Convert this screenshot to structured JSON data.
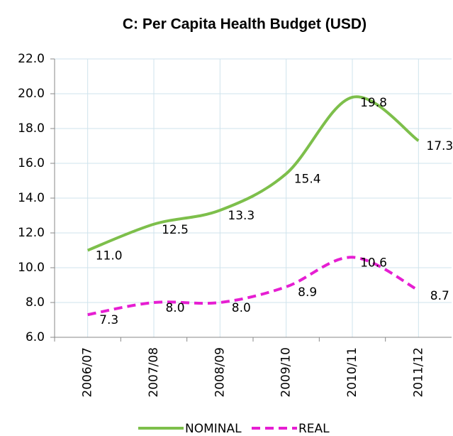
{
  "chart_data": {
    "type": "line",
    "title": "C: Per Capita Health Budget (USD)",
    "categories": [
      "2006/07",
      "2007/08",
      "2008/09",
      "2009/10",
      "2010/11",
      "2011/12"
    ],
    "series": [
      {
        "name": "NOMINAL",
        "color": "#7dbf4b",
        "dash": false,
        "values": [
          11.0,
          12.5,
          13.3,
          15.4,
          19.8,
          17.3
        ],
        "value_labels": [
          "11.0",
          "12.5",
          "13.3",
          "15.4",
          "19.8",
          "17.3"
        ]
      },
      {
        "name": "REAL",
        "color": "#e61ed2",
        "dash": true,
        "values": [
          7.3,
          8.0,
          8.0,
          8.9,
          10.6,
          8.7
        ],
        "value_labels": [
          "7.3",
          "8.0",
          "8.0",
          "8.9",
          "10.6",
          "8.7"
        ]
      }
    ],
    "ylim": [
      6,
      22
    ],
    "yticks": [
      {
        "value": 6,
        "label": "6.0"
      },
      {
        "value": 8,
        "label": "8.0"
      },
      {
        "value": 10,
        "label": "10.0"
      },
      {
        "value": 12,
        "label": "12.0"
      },
      {
        "value": 14,
        "label": "14.0"
      },
      {
        "value": 16,
        "label": "16.0"
      },
      {
        "value": 18,
        "label": "18.0"
      },
      {
        "value": 20,
        "label": "20.0"
      },
      {
        "value": 22,
        "label": "22.0"
      }
    ],
    "grid": true,
    "smooth": true,
    "legend": "bottom"
  }
}
